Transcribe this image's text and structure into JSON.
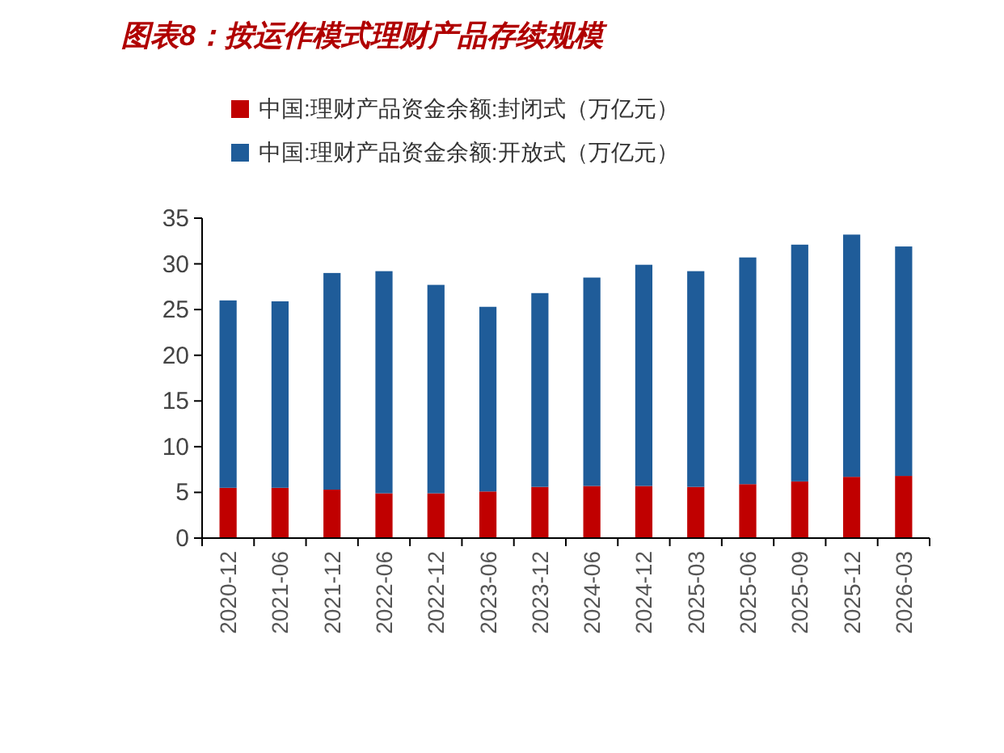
{
  "chart_data": {
    "type": "bar",
    "title": "图表8：按运作模式理财产品存续规模",
    "stacked": true,
    "categories": [
      "2020-12",
      "2021-06",
      "2021-12",
      "2022-06",
      "2022-12",
      "2023-06",
      "2023-12",
      "2024-06",
      "2024-12",
      "2025-03",
      "2025-06",
      "2025-09",
      "2025-12",
      "2026-03"
    ],
    "series": [
      {
        "name": "中国:理财产品资金余额:封闭式（万亿元）",
        "color": "#c00000",
        "values": [
          5.5,
          5.5,
          5.3,
          4.9,
          4.9,
          5.1,
          5.6,
          5.7,
          5.7,
          5.6,
          5.9,
          6.2,
          6.7,
          6.8
        ]
      },
      {
        "name": "中国:理财产品资金余额:开放式（万亿元）",
        "color": "#1f5c99",
        "values": [
          20.5,
          20.4,
          23.7,
          24.3,
          22.8,
          20.2,
          21.2,
          22.8,
          24.2,
          23.6,
          24.8,
          25.9,
          26.5,
          25.1
        ]
      }
    ],
    "ylim": [
      0,
      35
    ],
    "yticks": [
      0,
      5,
      10,
      15,
      20,
      25,
      30,
      35
    ],
    "grid": false,
    "legend": "top left"
  }
}
